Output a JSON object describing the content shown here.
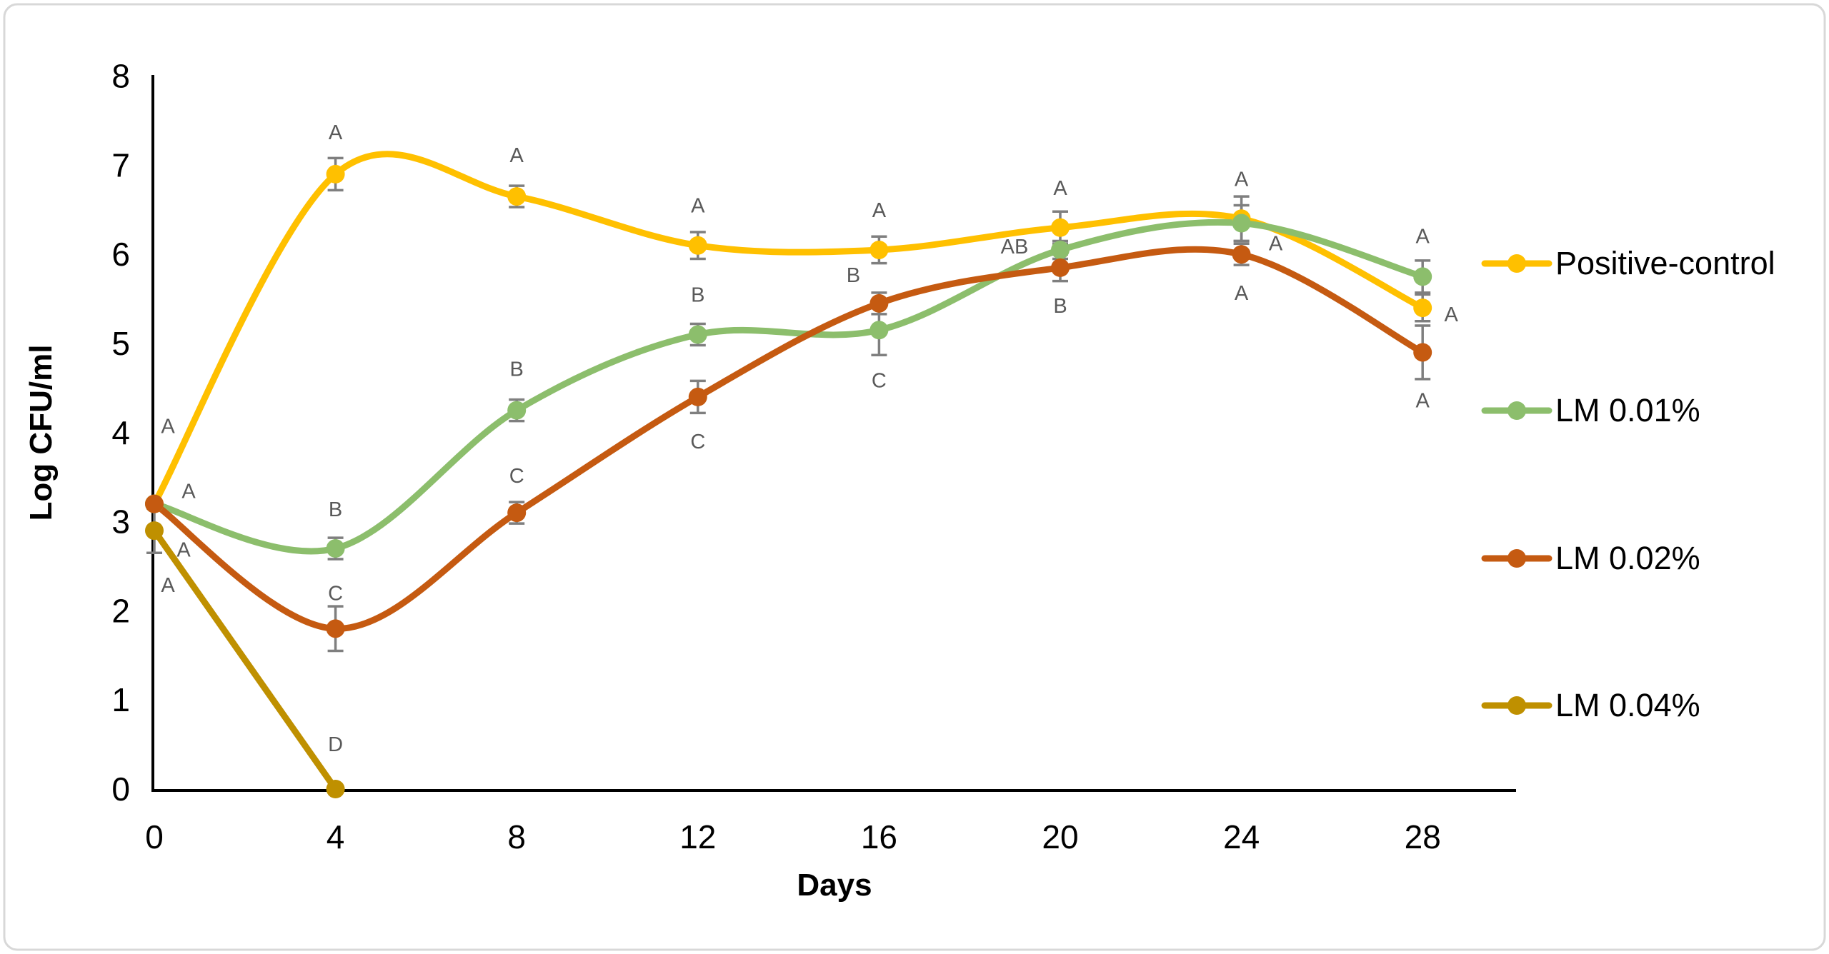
{
  "frame": {
    "background": "#FFFFFF",
    "border_color": "#D8D8D8"
  },
  "chart_data": {
    "type": "line",
    "title": "",
    "xlabel": "Days",
    "ylabel": "Log CFU/ml",
    "x": [
      0,
      4,
      8,
      12,
      16,
      20,
      24,
      28
    ],
    "x_ticks": [
      0,
      4,
      8,
      12,
      16,
      20,
      24,
      28
    ],
    "y_ticks": [
      0,
      1,
      2,
      3,
      4,
      5,
      6,
      7,
      8
    ],
    "xlim": [
      0,
      30
    ],
    "ylim": [
      0,
      8
    ],
    "grid": false,
    "smoothing": "spline",
    "legend_position": "right",
    "error_bar_color": "#7F7F7F",
    "annotation_color": "#595959",
    "axis_color": "#000000",
    "series": [
      {
        "name": "Positive-control",
        "color": "#FFC000",
        "values": [
          3.2,
          6.9,
          6.65,
          6.1,
          6.05,
          6.3,
          6.4,
          5.4
        ],
        "errors": [
          0,
          0.18,
          0.12,
          0.15,
          0.15,
          0.18,
          0.25,
          0.15
        ],
        "labels": [
          "A",
          "A",
          "A",
          "A",
          "A",
          "A",
          "A",
          "A"
        ],
        "label_offsets": [
          [
            19,
            -109
          ],
          [
            0,
            -59
          ],
          [
            0,
            -58
          ],
          [
            0,
            -56
          ],
          [
            0,
            -56
          ],
          [
            0,
            -56
          ],
          [
            0,
            -56
          ],
          [
            40,
            9
          ]
        ]
      },
      {
        "name": "LM 0.01%",
        "color": "#8CBE6C",
        "values": [
          3.2,
          2.7,
          4.25,
          5.1,
          5.15,
          6.05,
          6.35,
          5.75
        ],
        "errors": [
          0,
          0.12,
          0.12,
          0.12,
          0.28,
          0.1,
          0.2,
          0.18
        ],
        "labels": [
          "A",
          "B",
          "B",
          "B",
          "C",
          "AB",
          "A",
          "A"
        ],
        "label_offsets": [
          [
            48,
            -18
          ],
          [
            0,
            -55
          ],
          [
            0,
            -58
          ],
          [
            0,
            -56
          ],
          [
            0,
            70
          ],
          [
            -64,
            -5
          ],
          [
            48,
            28
          ],
          [
            0,
            -57
          ]
        ]
      },
      {
        "name": "LM 0.02%",
        "color": "#C55A11",
        "values": [
          3.2,
          1.8,
          3.1,
          4.4,
          5.45,
          5.85,
          6.0,
          4.9
        ],
        "errors": [
          0,
          0.25,
          0.12,
          0.18,
          0.12,
          0.15,
          0.12,
          0.3
        ],
        "labels": [
          "A",
          "C",
          "C",
          "C",
          "B",
          "B",
          "A",
          "A"
        ],
        "label_offsets": [
          [
            41,
            64
          ],
          [
            0,
            -50
          ],
          [
            0,
            -52
          ],
          [
            0,
            62
          ],
          [
            -36,
            -40
          ],
          [
            0,
            53
          ],
          [
            0,
            54
          ],
          [
            0,
            67
          ]
        ]
      },
      {
        "name": "LM 0.04%",
        "color": "#BF9000",
        "values": [
          2.9,
          0,
          null,
          null,
          null,
          null,
          null,
          null
        ],
        "errors": [
          0.25,
          0,
          0,
          0,
          0,
          0,
          0,
          0
        ],
        "labels": [
          "A",
          "D",
          "",
          "",
          "",
          "",
          "",
          ""
        ],
        "label_offsets": [
          [
            19,
            76
          ],
          [
            0,
            -63
          ],
          [
            0,
            0
          ],
          [
            0,
            0
          ],
          [
            0,
            0
          ],
          [
            0,
            0
          ],
          [
            0,
            0
          ],
          [
            0,
            0
          ]
        ]
      }
    ]
  }
}
